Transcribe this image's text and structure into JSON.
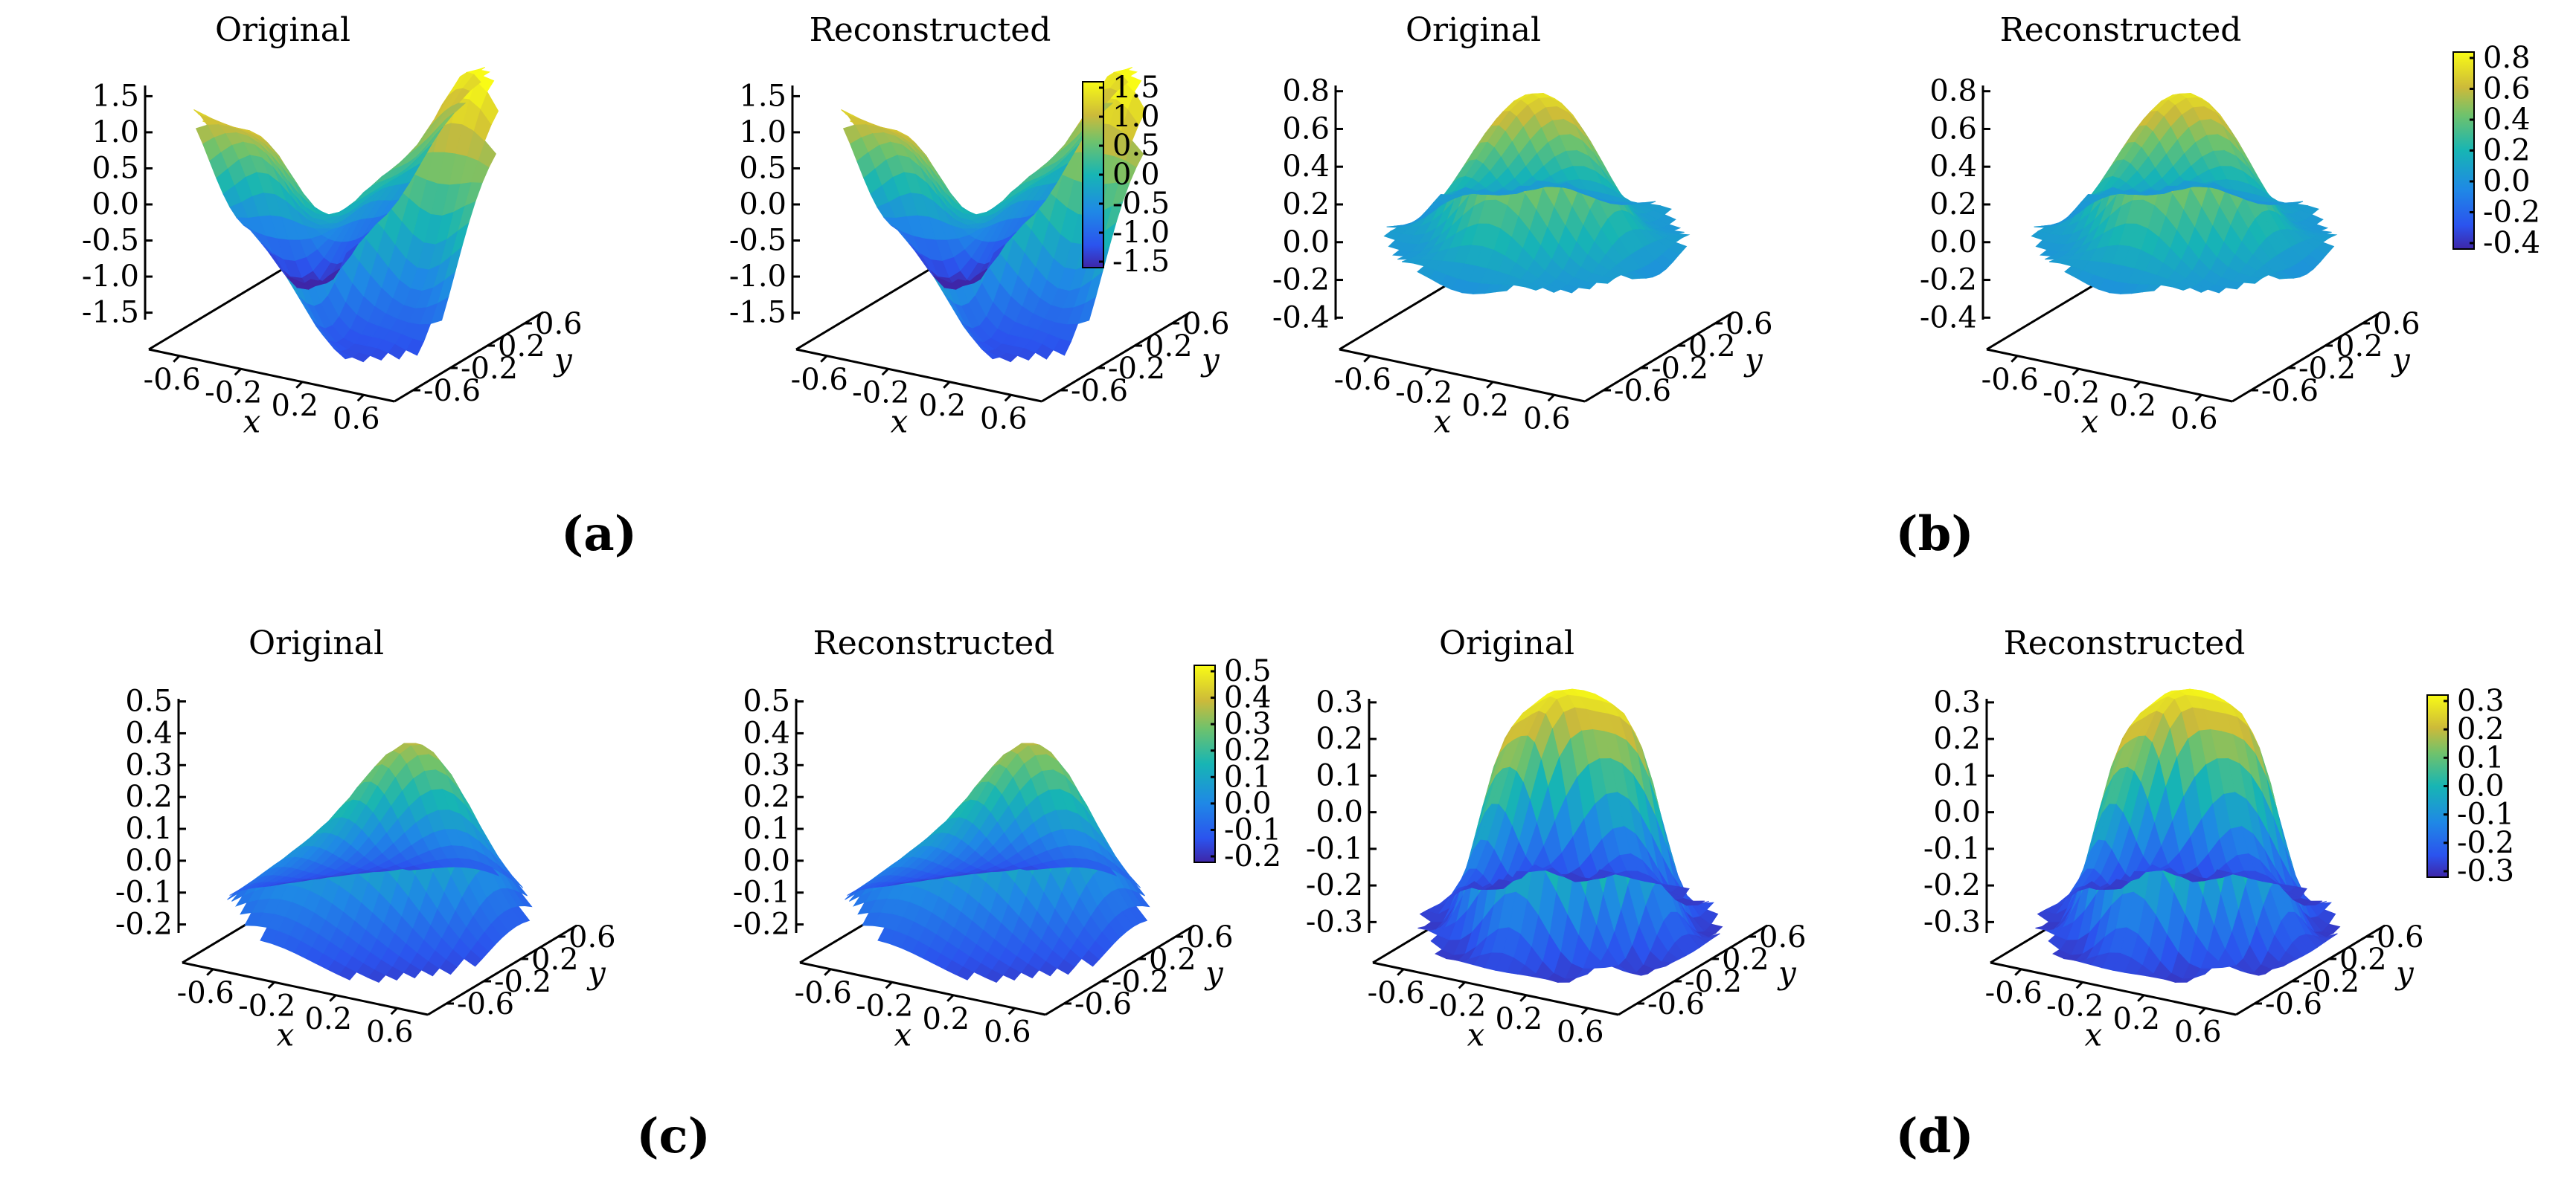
{
  "figure": {
    "panels": [
      {
        "label": "(a)",
        "ztick_labels": [
          "1.5",
          "1.0",
          "0.5",
          "0.0",
          "-0.5",
          "-1.0",
          "-1.5"
        ],
        "colorbar_labels": [
          "1.5",
          "1.0",
          "0.5",
          "0.0",
          "-0.5",
          "-1.0",
          "-1.5"
        ]
      },
      {
        "label": "(b)",
        "ztick_labels": [
          "0.8",
          "0.6",
          "0.4",
          "0.2",
          "0.0",
          "-0.2",
          "-0.4"
        ],
        "colorbar_labels": [
          "0.8",
          "0.6",
          "0.4",
          "0.2",
          "0.0",
          "-0.2",
          "-0.4"
        ]
      },
      {
        "label": "(c)",
        "ztick_labels": [
          "0.5",
          "0.4",
          "0.3",
          "0.2",
          "0.1",
          "0.0",
          "-0.1",
          "-0.2"
        ],
        "colorbar_labels": [
          "0.5",
          "0.4",
          "0.3",
          "0.2",
          "0.1",
          "0.0",
          "-0.1",
          "-0.2"
        ]
      },
      {
        "label": "(d)",
        "ztick_labels": [
          "0.3",
          "0.2",
          "0.1",
          "0.0",
          "-0.1",
          "-0.2",
          "-0.3"
        ],
        "colorbar_labels": [
          "0.3",
          "0.2",
          "0.1",
          "0.0",
          "-0.1",
          "-0.2",
          "-0.3"
        ]
      }
    ]
  },
  "chart_data": [
    {
      "type": "surface",
      "panel": "(a)",
      "title": "Original",
      "xlabel": "x",
      "ylabel": "y",
      "xticks": [
        "-0.6",
        "-0.2",
        "0.2",
        "0.6"
      ],
      "yticks": [
        "0.6",
        "0.2",
        "-0.2",
        "-0.6"
      ],
      "zlim": [
        -1.7,
        1.7
      ],
      "surface": "saddle",
      "colormap": "parula"
    },
    {
      "type": "surface",
      "panel": "(a)",
      "title": "Reconstructed",
      "xlabel": "x",
      "ylabel": "y",
      "xticks": [
        "-0.6",
        "-0.2",
        "0.2",
        "0.6"
      ],
      "yticks": [
        "0.6",
        "0.2",
        "-0.2",
        "-0.6"
      ],
      "zlim": [
        -1.7,
        1.7
      ],
      "surface": "saddle",
      "colormap": "parula"
    },
    {
      "type": "surface",
      "panel": "(b)",
      "title": "Original",
      "xlabel": "x",
      "ylabel": "y",
      "xticks": [
        "-0.6",
        "-0.2",
        "0.2",
        "0.6"
      ],
      "yticks": [
        "0.6",
        "0.2",
        "-0.2",
        "-0.6"
      ],
      "zlim": [
        -0.45,
        0.85
      ],
      "surface": "gaussian peak",
      "colormap": "parula"
    },
    {
      "type": "surface",
      "panel": "(b)",
      "title": "Reconstructed",
      "xlabel": "x",
      "ylabel": "y",
      "xticks": [
        "-0.6",
        "-0.2",
        "0.2",
        "0.6"
      ],
      "yticks": [
        "0.6",
        "0.2",
        "-0.2",
        "-0.6"
      ],
      "zlim": [
        -0.45,
        0.85
      ],
      "surface": "gaussian peak",
      "colormap": "parula"
    },
    {
      "type": "surface",
      "panel": "(c)",
      "title": "Original",
      "xlabel": "x",
      "ylabel": "y",
      "xticks": [
        "-0.6",
        "-0.2",
        "0.2",
        "0.6"
      ],
      "yticks": [
        "0.6",
        "0.2",
        "-0.2",
        "-0.6"
      ],
      "zlim": [
        -0.25,
        0.52
      ],
      "surface": "skewed peak",
      "colormap": "parula"
    },
    {
      "type": "surface",
      "panel": "(c)",
      "title": "Reconstructed",
      "xlabel": "x",
      "ylabel": "y",
      "xticks": [
        "-0.6",
        "-0.2",
        "0.2",
        "0.6"
      ],
      "yticks": [
        "0.6",
        "0.2",
        "-0.2",
        "-0.6"
      ],
      "zlim": [
        -0.25,
        0.52
      ],
      "surface": "skewed peak",
      "colormap": "parula"
    },
    {
      "type": "surface",
      "panel": "(d)",
      "title": "Original",
      "xlabel": "x",
      "ylabel": "y",
      "xticks": [
        "-0.6",
        "-0.2",
        "0.2",
        "0.6"
      ],
      "yticks": [
        "0.6",
        "0.2",
        "-0.2",
        "-0.6"
      ],
      "zlim": [
        -0.35,
        0.32
      ],
      "surface": "flat-top plateau",
      "colormap": "parula"
    },
    {
      "type": "surface",
      "panel": "(d)",
      "title": "Reconstructed",
      "xlabel": "x",
      "ylabel": "y",
      "xticks": [
        "-0.6",
        "-0.2",
        "0.2",
        "0.6"
      ],
      "yticks": [
        "0.6",
        "0.2",
        "-0.2",
        "-0.6"
      ],
      "zlim": [
        -0.35,
        0.32
      ],
      "surface": "flat-top plateau",
      "colormap": "parula"
    }
  ]
}
